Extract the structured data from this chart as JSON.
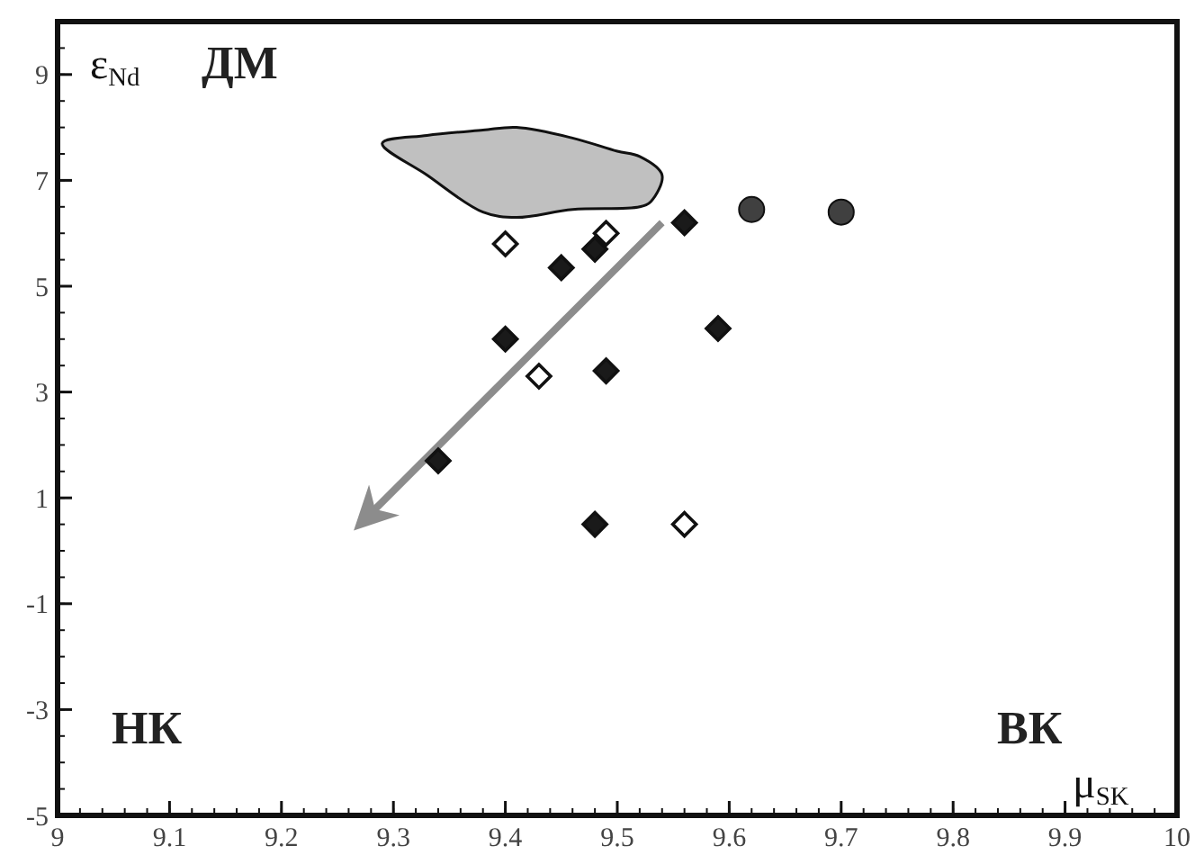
{
  "chart_data": {
    "type": "scatter",
    "xlabel": "μ$_{SK}$",
    "ylabel": "ε$_{Nd}$",
    "annotations": [
      "ДМ",
      "НК",
      "ВК"
    ],
    "xlim": [
      9,
      10
    ],
    "xticks": [
      9,
      9.1,
      9.2,
      9.3,
      9.4,
      9.5,
      9.6,
      9.7,
      9.8,
      9.9,
      10
    ],
    "ylim": [
      -5,
      10
    ],
    "yticks": [
      -5,
      -3,
      -1,
      1,
      3,
      5,
      7,
      9
    ],
    "grid": false,
    "series": [
      {
        "type": "area",
        "color": "#c0c0c0",
        "x": [
          9.29,
          9.33,
          9.38,
          9.41,
          9.46,
          9.5,
          9.52,
          9.54,
          9.53,
          9.52,
          9.46,
          9.41,
          9.38,
          9.33
        ],
        "values": [
          7.7,
          7.85,
          7.95,
          8.0,
          7.8,
          7.55,
          7.45,
          7.1,
          6.6,
          6.5,
          6.45,
          6.3,
          6.4,
          7.1
        ]
      },
      {
        "type": "line",
        "color": "#8c8c8c",
        "x": [
          9.54,
          9.27
        ],
        "values": [
          6.2,
          0.5
        ],
        "marker": "none"
      },
      {
        "color": "#1a1a1a",
        "marker": "diamond",
        "x": [
          9.56,
          9.45,
          9.48,
          9.4,
          9.49,
          9.59,
          9.34,
          9.48
        ],
        "values": [
          6.2,
          5.35,
          5.7,
          4.0,
          3.4,
          4.2,
          1.7,
          0.5
        ]
      },
      {
        "color": "#ffffff",
        "marker": "diamond",
        "x": [
          9.4,
          9.49,
          9.43,
          9.56
        ],
        "values": [
          5.8,
          6.0,
          3.3,
          0.5
        ]
      },
      {
        "color": "#404040",
        "marker": "circle",
        "x": [
          9.62,
          9.7
        ],
        "values": [
          6.45,
          6.4
        ]
      }
    ]
  }
}
